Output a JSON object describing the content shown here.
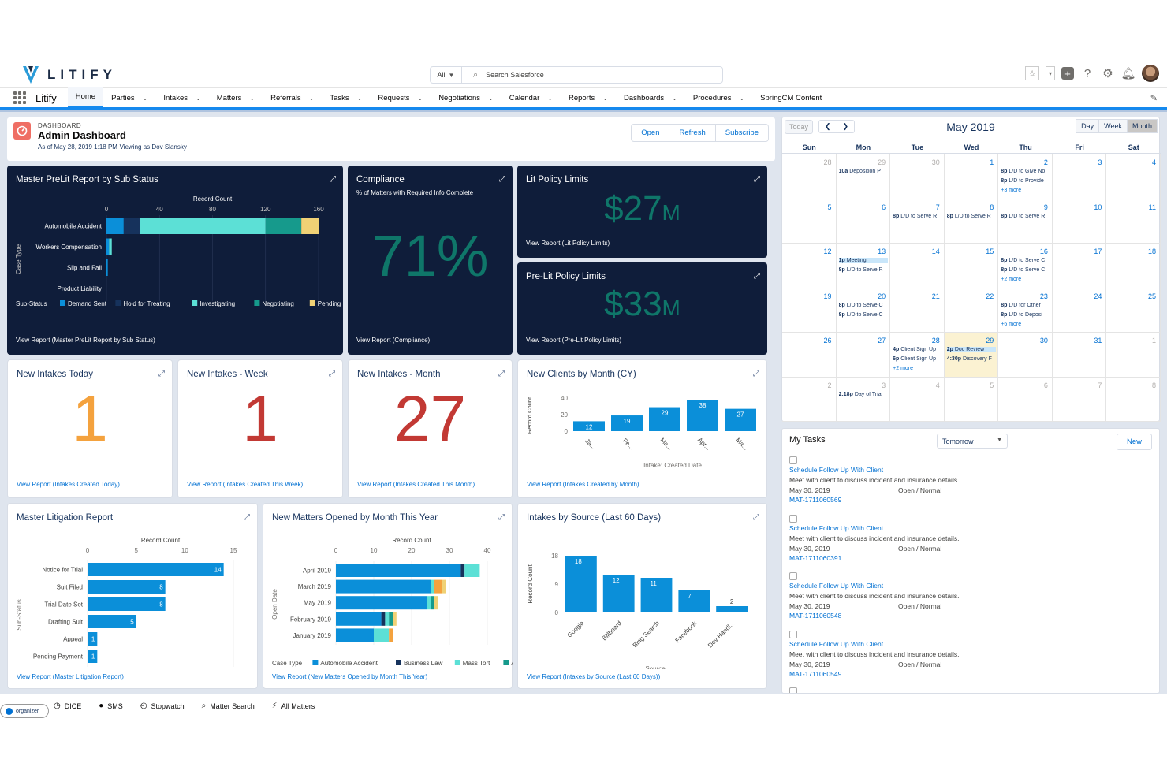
{
  "brand": {
    "name": "LITIFY",
    "app_name": "Litify"
  },
  "search": {
    "scope": "All",
    "placeholder": "Search Salesforce"
  },
  "nav": {
    "items": [
      {
        "label": "Home",
        "active": true,
        "chevron": false
      },
      {
        "label": "Parties",
        "chevron": true
      },
      {
        "label": "Intakes",
        "chevron": true
      },
      {
        "label": "Matters",
        "chevron": true
      },
      {
        "label": "Referrals",
        "chevron": true
      },
      {
        "label": "Tasks",
        "chevron": true
      },
      {
        "label": "Requests",
        "chevron": true
      },
      {
        "label": "Negotiations",
        "chevron": true
      },
      {
        "label": "Calendar",
        "chevron": true
      },
      {
        "label": "Reports",
        "chevron": true
      },
      {
        "label": "Dashboards",
        "chevron": true
      },
      {
        "label": "Procedures",
        "chevron": true
      },
      {
        "label": "SpringCM Content",
        "chevron": false
      }
    ]
  },
  "dashboard": {
    "eyebrow": "DASHBOARD",
    "title": "Admin Dashboard",
    "subtitle": "As of May 28, 2019 1:18 PM·Viewing as Dov Slansky",
    "buttons": {
      "open": "Open",
      "refresh": "Refresh",
      "subscribe": "Subscribe"
    }
  },
  "colors": {
    "blue": "#0b8fd9",
    "teal_light": "#5ce0d6",
    "teal": "#169a8c",
    "navy": "#16325c",
    "yellow": "#f0d175",
    "dark": "#0f1d3a",
    "orange": "#f4a23e",
    "red": "#c23934",
    "green": "#0f7669"
  },
  "cards": {
    "prelit": {
      "title": "Master PreLit Report by Sub Status",
      "link": "View Report (Master PreLit Report by Sub Status)"
    },
    "compliance": {
      "title": "Compliance",
      "subtitle": "% of Matters with Required Info Complete",
      "value": "71%",
      "link": "View Report (Compliance)"
    },
    "litpolicy": {
      "title": "Lit Policy Limits",
      "value": "$27",
      "suffix": "M",
      "link": "View Report (Lit Policy Limits)"
    },
    "prelitpolicy": {
      "title": "Pre-Lit Policy Limits",
      "value": "$33",
      "suffix": "M",
      "link": "View Report (Pre-Lit Policy Limits)"
    },
    "intakes_today": {
      "title": "New Intakes Today",
      "value": "1",
      "link": "View Report (Intakes Created Today)"
    },
    "intakes_week": {
      "title": "New Intakes - Week",
      "value": "1",
      "link": "View Report (Intakes Created This Week)"
    },
    "intakes_month": {
      "title": "New Intakes - Month",
      "value": "27",
      "link": "View Report (Intakes Created This Month)"
    },
    "clients": {
      "title": "New Clients by Month (CY)",
      "link": "View Report (Intakes Created by Month)"
    },
    "litigation": {
      "title": "Master Litigation Report",
      "link": "View Report (Master Litigation Report)"
    },
    "matters": {
      "title": "New Matters Opened by Month This Year",
      "link": "View Report (New Matters Opened by Month This Year)"
    },
    "source": {
      "title": "Intakes by Source (Last 60 Days)",
      "link": "View Report (Intakes by Source (Last 60 Days))"
    }
  },
  "chart_data": [
    {
      "type": "bar",
      "orientation": "horizontal",
      "stacked": true,
      "title": "Master PreLit Report by Sub Status",
      "xlabel": "Record Count",
      "ylabel": "Case Type",
      "xlim": [
        0,
        160
      ],
      "xticks": [
        0,
        40,
        80,
        120,
        160
      ],
      "categories": [
        "Automobile Accident",
        "Workers Compensation",
        "Slip and Fall",
        "Product Liability"
      ],
      "legend_title": "Sub-Status",
      "series": [
        {
          "name": "Demand Sent",
          "color": "#0b8fd9",
          "values": [
            13,
            2,
            1,
            0
          ]
        },
        {
          "name": "Hold for Treating",
          "color": "#16325c",
          "values": [
            12,
            0,
            0,
            0
          ]
        },
        {
          "name": "Investigating",
          "color": "#5ce0d6",
          "values": [
            95,
            2,
            0,
            0
          ]
        },
        {
          "name": "Negotiating",
          "color": "#169a8c",
          "values": [
            27,
            0,
            0,
            0
          ]
        },
        {
          "name": "Pending Reso",
          "color": "#f0d175",
          "values": [
            13,
            0,
            0,
            0
          ]
        }
      ]
    },
    {
      "type": "bar",
      "title": "New Clients by Month (CY)",
      "xlabel": "Intake: Created Date",
      "ylabel": "Record Count",
      "ylim": [
        0,
        40
      ],
      "yticks": [
        0,
        20,
        40
      ],
      "categories": [
        "Ja...",
        "Fe...",
        "Ma...",
        "Apr...",
        "Ma..."
      ],
      "values": [
        12,
        19,
        29,
        38,
        27
      ]
    },
    {
      "type": "bar",
      "orientation": "horizontal",
      "title": "Master Litigation Report",
      "xlabel": "Record Count",
      "ylabel": "Sub-Status",
      "xlim": [
        0,
        15
      ],
      "xticks": [
        0,
        5,
        10,
        15
      ],
      "categories": [
        "Notice for Trial",
        "Suit Filed",
        "Trial Date Set",
        "Drafting Suit",
        "Appeal",
        "Pending Payment"
      ],
      "values": [
        14,
        8,
        8,
        5,
        1,
        1
      ]
    },
    {
      "type": "bar",
      "orientation": "horizontal",
      "stacked": true,
      "title": "New Matters Opened by Month This Year",
      "xlabel": "Record Count",
      "ylabel": "Open Date",
      "xlim": [
        0,
        40
      ],
      "xticks": [
        0,
        10,
        20,
        30,
        40
      ],
      "categories": [
        "April 2019",
        "March 2019",
        "May 2019",
        "February 2019",
        "January 2019"
      ],
      "legend_title": "Case Type",
      "series": [
        {
          "name": "Automobile Accident",
          "color": "#0b8fd9",
          "values": [
            33,
            25,
            24,
            12,
            10
          ]
        },
        {
          "name": "Business Law",
          "color": "#16325c",
          "values": [
            1,
            0,
            0,
            1,
            0
          ]
        },
        {
          "name": "Mass Tort",
          "color": "#5ce0d6",
          "values": [
            4,
            1,
            1,
            1,
            4
          ]
        },
        {
          "name": "A:",
          "color": "#169a8c",
          "values": [
            0,
            0,
            1,
            1,
            0
          ]
        },
        {
          "name": "",
          "color": "#f4a23e",
          "values": [
            0,
            2,
            0,
            0,
            1
          ]
        },
        {
          "name": "",
          "color": "#f0d175",
          "values": [
            0,
            1,
            1,
            1,
            0
          ]
        }
      ]
    },
    {
      "type": "bar",
      "title": "Intakes by Source (Last 60 Days)",
      "xlabel": "Source",
      "ylabel": "Record Count",
      "ylim": [
        0,
        18
      ],
      "yticks": [
        0,
        9,
        18
      ],
      "categories": [
        "Google",
        "Billboard",
        "Bing Search",
        "Facebook",
        "Dov Handl..."
      ],
      "values": [
        18,
        12,
        11,
        7,
        2
      ]
    }
  ],
  "calendar": {
    "today_btn": "Today",
    "title": "May 2019",
    "views": [
      "Day",
      "Week",
      "Month"
    ],
    "active_view": "Month",
    "weekdays": [
      "Sun",
      "Mon",
      "Tue",
      "Wed",
      "Thu",
      "Fri",
      "Sat"
    ],
    "weeks": [
      [
        {
          "d": "28",
          "dim": true
        },
        {
          "d": "29",
          "dim": true,
          "ev": [
            [
              "10a",
              "Deposition P"
            ]
          ]
        },
        {
          "d": "30",
          "dim": true
        },
        {
          "d": "1"
        },
        {
          "d": "2",
          "ev": [
            [
              "8p",
              "L/D to Give No"
            ],
            [
              "8p",
              "L/D to Provide"
            ]
          ],
          "more": "+3 more"
        },
        {
          "d": "3"
        },
        {
          "d": "4"
        }
      ],
      [
        {
          "d": "5"
        },
        {
          "d": "6"
        },
        {
          "d": "7",
          "ev": [
            [
              "8p",
              "L/D to Serve R"
            ]
          ]
        },
        {
          "d": "8",
          "ev": [
            [
              "8p",
              "L/D to Serve R"
            ]
          ]
        },
        {
          "d": "9",
          "ev": [
            [
              "8p",
              "L/D to Serve R"
            ]
          ]
        },
        {
          "d": "10"
        },
        {
          "d": "11"
        }
      ],
      [
        {
          "d": "12"
        },
        {
          "d": "13",
          "ev": [
            [
              "1p",
              "Meeting"
            ],
            [
              "8p",
              "L/D to Serve R"
            ]
          ]
        },
        {
          "d": "14"
        },
        {
          "d": "15"
        },
        {
          "d": "16",
          "ev": [
            [
              "8p",
              "L/D to Serve C"
            ],
            [
              "8p",
              "L/D to Serve C"
            ]
          ],
          "more": "+2 more"
        },
        {
          "d": "17"
        },
        {
          "d": "18"
        }
      ],
      [
        {
          "d": "19"
        },
        {
          "d": "20",
          "ev": [
            [
              "8p",
              "L/D to Serve C"
            ],
            [
              "8p",
              "L/D to Serve C"
            ]
          ]
        },
        {
          "d": "21"
        },
        {
          "d": "22"
        },
        {
          "d": "23",
          "ev": [
            [
              "8p",
              "L/D for Other"
            ],
            [
              "8p",
              "L/D to Deposi"
            ]
          ],
          "more": "+6 more"
        },
        {
          "d": "24"
        },
        {
          "d": "25"
        }
      ],
      [
        {
          "d": "26"
        },
        {
          "d": "27"
        },
        {
          "d": "28",
          "ev": [
            [
              "4p",
              "Client Sign Up"
            ],
            [
              "6p",
              "Client Sign Up"
            ]
          ],
          "more": "+2 more"
        },
        {
          "d": "29",
          "today": true,
          "ev": [
            [
              "2p",
              "Doc Review"
            ],
            [
              "4:30p",
              "Discovery F"
            ]
          ]
        },
        {
          "d": "30"
        },
        {
          "d": "31"
        },
        {
          "d": "1",
          "dim": true
        }
      ],
      [
        {
          "d": "2",
          "dim": true
        },
        {
          "d": "3",
          "dim": true,
          "ev": [
            [
              "2:18p",
              "Day of Trial"
            ]
          ]
        },
        {
          "d": "4",
          "dim": true
        },
        {
          "d": "5",
          "dim": true
        },
        {
          "d": "6",
          "dim": true
        },
        {
          "d": "7",
          "dim": true
        },
        {
          "d": "8",
          "dim": true
        }
      ]
    ]
  },
  "tasks": {
    "title": "My Tasks",
    "filter": "Tomorrow",
    "new_btn": "New",
    "items": [
      {
        "title": "Schedule Follow Up With Client",
        "desc": "Meet with client to discuss incident and insurance details.",
        "date": "May 30, 2019",
        "status": "Open / Normal",
        "matter": "MAT-1711060569"
      },
      {
        "title": "Schedule Follow Up With Client",
        "desc": "Meet with client to discuss incident and insurance details.",
        "date": "May 30, 2019",
        "status": "Open / Normal",
        "matter": "MAT-1711060391"
      },
      {
        "title": "Schedule Follow Up With Client",
        "desc": "Meet with client to discuss incident and insurance details.",
        "date": "May 30, 2019",
        "status": "Open / Normal",
        "matter": "MAT-1711060548"
      },
      {
        "title": "Schedule Follow Up With Client",
        "desc": "Meet with client to discuss incident and insurance details.",
        "date": "May 30, 2019",
        "status": "Open / Normal",
        "matter": "MAT-1711060549"
      }
    ]
  },
  "utility": {
    "items": [
      {
        "label": "DICE",
        "icon": "clock-icon"
      },
      {
        "label": "SMS",
        "icon": "chat-icon"
      },
      {
        "label": "Stopwatch",
        "icon": "stopwatch-icon"
      },
      {
        "label": "Matter Search",
        "icon": "search-icon"
      },
      {
        "label": "All Matters",
        "icon": "bolt-icon"
      }
    ],
    "organizer": "organizer"
  }
}
